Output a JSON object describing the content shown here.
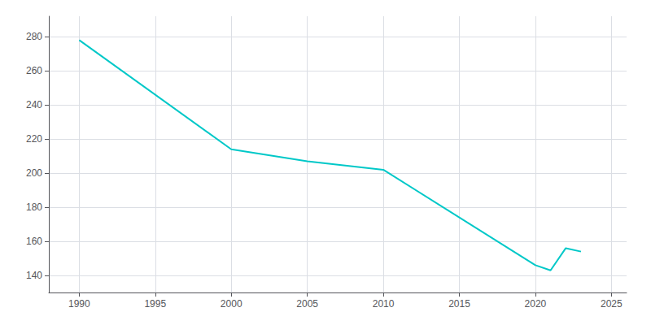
{
  "chart_data": {
    "type": "line",
    "x": [
      1990,
      2000,
      2005,
      2010,
      2020,
      2021,
      2022,
      2023
    ],
    "values": [
      278,
      214,
      207,
      202,
      146,
      143,
      156,
      154
    ],
    "color": "#00C8C8",
    "xlim": [
      1988,
      2026
    ],
    "ylim": [
      130,
      292
    ],
    "xticks": [
      1990,
      1995,
      2000,
      2005,
      2010,
      2015,
      2020,
      2025
    ],
    "yticks": [
      140,
      160,
      180,
      200,
      220,
      240,
      260,
      280
    ],
    "grid": true
  }
}
